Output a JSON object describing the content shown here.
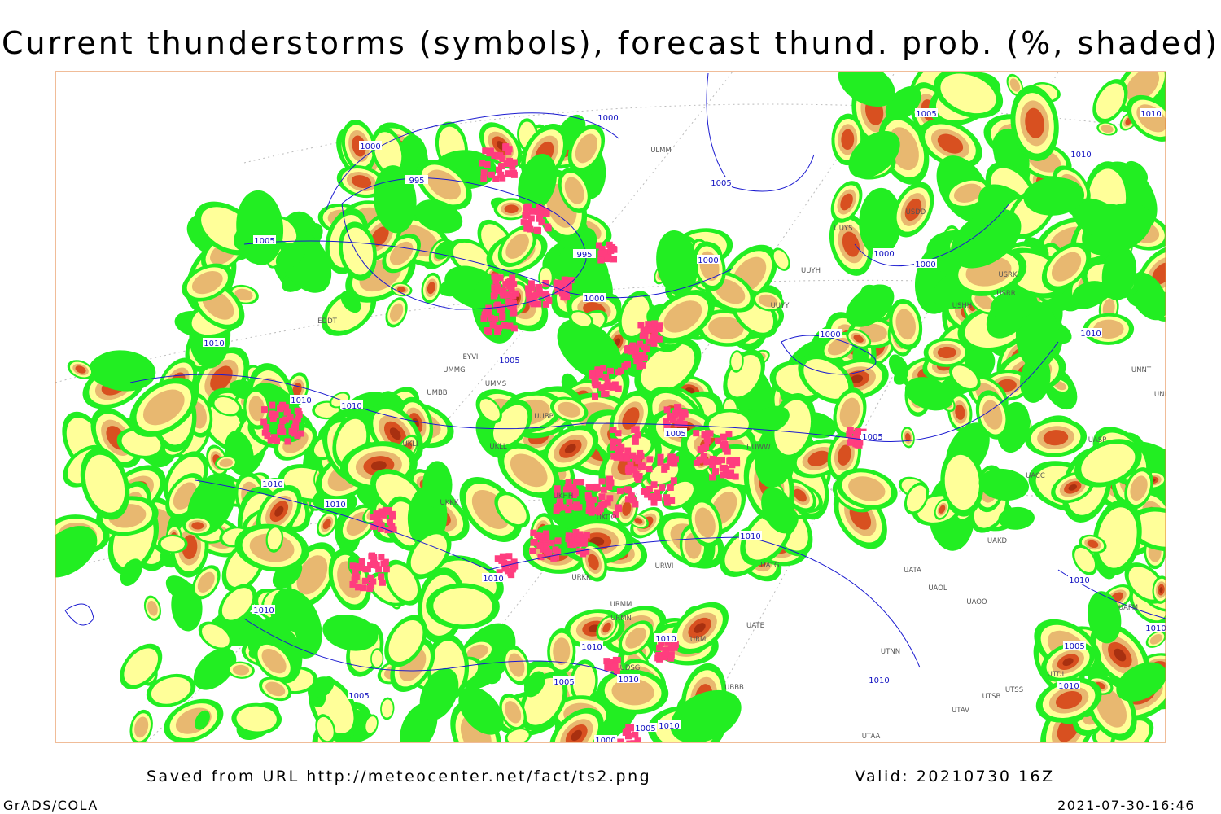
{
  "title": "Current thunderstorms (symbols), forecast thund. prob. (%, shaded)",
  "footer": {
    "source": "Saved from URL http://meteocenter.net/fact/ts2.png",
    "valid": "Valid: 20210730 16Z",
    "software": "GrADS/COLA",
    "timestamp": "2021-07-30-16:46"
  },
  "isobar_labels": [
    "1000",
    "995",
    "1000",
    "1005",
    "995",
    "1000",
    "1000",
    "1005",
    "1005",
    "1010",
    "1000",
    "1000",
    "1010",
    "1010",
    "1000",
    "1005",
    "1010",
    "1010",
    "1010",
    "1005",
    "1005",
    "1010",
    "1010",
    "1010",
    "1010",
    "1010",
    "1010",
    "1010",
    "1005",
    "1010",
    "1005",
    "1005",
    "1010",
    "1000",
    "1010",
    "1010",
    "1005",
    "1010",
    "1010"
  ],
  "stations": [
    "ULMM",
    "UUYS",
    "USDD",
    "UUYH",
    "USRK",
    "USRR",
    "UUYY",
    "USHH",
    "EDDT",
    "EYVI",
    "UMMG",
    "UMMS",
    "UMBB",
    "UUBP",
    "UKLI",
    "UKLL",
    "UUWW",
    "UKHH",
    "UKKK",
    "UKOO",
    "URWI",
    "UATG",
    "UATA",
    "UAOL",
    "UAOO",
    "URKK",
    "URMM",
    "URMN",
    "UATE",
    "URML",
    "UTNN",
    "UDSG",
    "UBBB",
    "UTSS",
    "UTSB",
    "UTAV",
    "UTAA",
    "UAKD",
    "UACC",
    "UASP",
    "UNNT",
    "UNBB",
    "UTDL",
    "UAFM"
  ]
}
